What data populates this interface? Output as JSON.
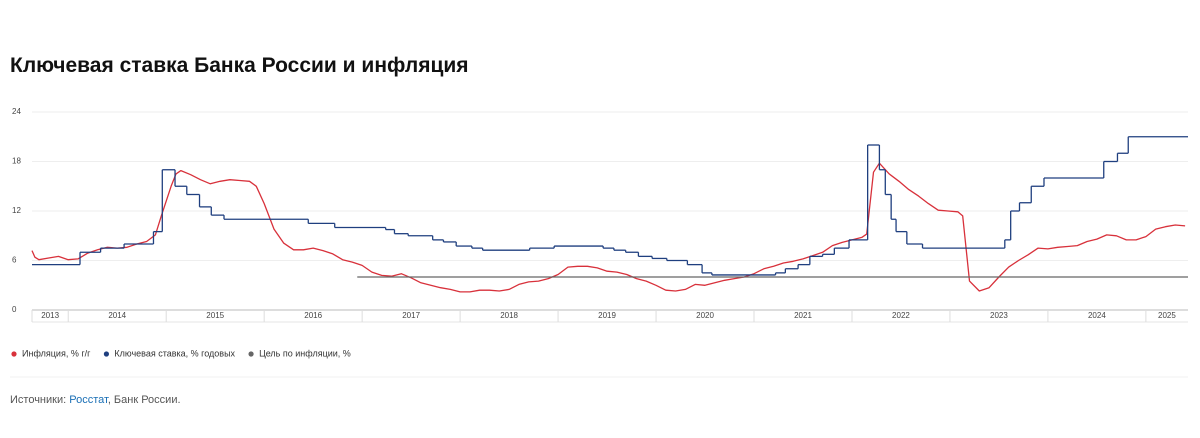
{
  "chart_data": {
    "type": "line",
    "title": "Ключевая ставка Банка России и инфляция",
    "xlim": [
      2013.63,
      2025.43
    ],
    "xticks": [
      2014,
      2015,
      2016,
      2017,
      2018,
      2019,
      2020,
      2021,
      2022,
      2023,
      2024,
      2025
    ],
    "year_labels": [
      2013,
      2014,
      2015,
      2016,
      2017,
      2018,
      2019,
      2020,
      2021,
      2022,
      2023,
      2024,
      2025
    ],
    "ylim": [
      0,
      24
    ],
    "yticks": [
      0,
      6,
      12,
      18,
      24
    ],
    "grid": true,
    "series": [
      {
        "name": "Инфляция, % г/г",
        "color": "#d8313b",
        "step": false,
        "x": [
          2013.63,
          2013.66,
          2013.7,
          2013.8,
          2013.9,
          2014.0,
          2014.1,
          2014.2,
          2014.3,
          2014.4,
          2014.5,
          2014.6,
          2014.7,
          2014.8,
          2014.89,
          2014.95,
          2015.05,
          2015.1,
          2015.15,
          2015.25,
          2015.35,
          2015.45,
          2015.55,
          2015.65,
          2015.75,
          2015.85,
          2015.92,
          2016.0,
          2016.1,
          2016.2,
          2016.3,
          2016.4,
          2016.5,
          2016.6,
          2016.7,
          2016.8,
          2016.9,
          2017.0,
          2017.1,
          2017.2,
          2017.3,
          2017.4,
          2017.5,
          2017.6,
          2017.7,
          2017.8,
          2017.9,
          2018.0,
          2018.1,
          2018.2,
          2018.3,
          2018.4,
          2018.5,
          2018.6,
          2018.7,
          2018.8,
          2018.9,
          2019.0,
          2019.1,
          2019.2,
          2019.3,
          2019.4,
          2019.5,
          2019.6,
          2019.7,
          2019.8,
          2019.9,
          2020.0,
          2020.1,
          2020.2,
          2020.3,
          2020.4,
          2020.5,
          2020.6,
          2020.7,
          2020.8,
          2020.9,
          2021.0,
          2021.1,
          2021.2,
          2021.3,
          2021.4,
          2021.5,
          2021.6,
          2021.7,
          2021.8,
          2021.9,
          2022.0,
          2022.1,
          2022.15,
          2022.22,
          2022.28,
          2022.38,
          2022.48,
          2022.58,
          2022.68,
          2022.78,
          2022.88,
          2022.98,
          2023.08,
          2023.13,
          2023.2,
          2023.3,
          2023.4,
          2023.5,
          2023.6,
          2023.7,
          2023.8,
          2023.9,
          2024.0,
          2024.1,
          2024.2,
          2024.3,
          2024.4,
          2024.5,
          2024.6,
          2024.7,
          2024.8,
          2024.9,
          2025.0,
          2025.1,
          2025.2,
          2025.3,
          2025.4
        ],
        "values": [
          7.2,
          6.4,
          6.1,
          6.3,
          6.5,
          6.1,
          6.2,
          6.9,
          7.3,
          7.6,
          7.5,
          7.6,
          8.0,
          8.3,
          9.1,
          11.4,
          15.0,
          16.5,
          16.9,
          16.4,
          15.8,
          15.3,
          15.6,
          15.8,
          15.7,
          15.6,
          15.0,
          12.9,
          9.8,
          8.1,
          7.3,
          7.3,
          7.5,
          7.2,
          6.8,
          6.1,
          5.8,
          5.4,
          4.6,
          4.2,
          4.1,
          4.4,
          3.9,
          3.3,
          3.0,
          2.7,
          2.5,
          2.2,
          2.2,
          2.4,
          2.4,
          2.3,
          2.5,
          3.1,
          3.4,
          3.5,
          3.8,
          4.3,
          5.2,
          5.3,
          5.3,
          5.1,
          4.7,
          4.6,
          4.3,
          3.8,
          3.5,
          3.0,
          2.4,
          2.3,
          2.5,
          3.1,
          3.0,
          3.3,
          3.6,
          3.8,
          4.0,
          4.4,
          5.0,
          5.3,
          5.7,
          5.9,
          6.2,
          6.6,
          7.0,
          7.8,
          8.2,
          8.5,
          8.8,
          9.2,
          16.7,
          17.8,
          16.5,
          15.6,
          14.6,
          13.8,
          12.9,
          12.1,
          12.0,
          11.9,
          11.4,
          3.5,
          2.3,
          2.7,
          4.0,
          5.2,
          6.0,
          6.7,
          7.5,
          7.4,
          7.6,
          7.7,
          7.8,
          8.3,
          8.6,
          9.1,
          9.0,
          8.5,
          8.5,
          8.9,
          9.8,
          10.1,
          10.3,
          10.2
        ]
      },
      {
        "name": "Ключевая ставка, % годовых",
        "color": "#1f3f7f",
        "step": true,
        "x": [
          2013.63,
          2014.12,
          2014.33,
          2014.57,
          2014.87,
          2014.96,
          2015.09,
          2015.21,
          2015.34,
          2015.46,
          2015.59,
          2016.45,
          2016.72,
          2017.24,
          2017.33,
          2017.47,
          2017.72,
          2017.83,
          2017.96,
          2018.12,
          2018.23,
          2018.71,
          2018.96,
          2019.46,
          2019.57,
          2019.69,
          2019.82,
          2019.96,
          2020.11,
          2020.32,
          2020.47,
          2020.57,
          2021.22,
          2021.32,
          2021.45,
          2021.57,
          2021.7,
          2021.82,
          2021.97,
          2022.16,
          2022.28,
          2022.34,
          2022.4,
          2022.45,
          2022.56,
          2022.72,
          2023.56,
          2023.62,
          2023.71,
          2023.83,
          2023.96,
          2024.57,
          2024.71,
          2024.82
        ],
        "values": [
          5.5,
          7.0,
          7.5,
          8.0,
          9.5,
          17.0,
          15.0,
          14.0,
          12.5,
          11.5,
          11.0,
          10.5,
          10.0,
          9.75,
          9.25,
          9.0,
          8.5,
          8.25,
          7.75,
          7.5,
          7.25,
          7.5,
          7.75,
          7.5,
          7.25,
          7.0,
          6.5,
          6.25,
          6.0,
          5.5,
          4.5,
          4.25,
          4.5,
          5.0,
          5.5,
          6.5,
          6.75,
          7.5,
          8.5,
          20.0,
          17.0,
          14.0,
          11.0,
          9.5,
          8.0,
          7.5,
          8.5,
          12.0,
          13.0,
          15.0,
          16.0,
          18.0,
          19.0,
          21.0
        ]
      },
      {
        "name": "Цель по инфляции, %",
        "color": "#666666",
        "step": true,
        "x": [
          2016.95
        ],
        "values": [
          4
        ]
      }
    ],
    "source": {
      "prefix": "Источники: ",
      "link": "Росстат",
      "suffix": ", Банк России."
    }
  }
}
